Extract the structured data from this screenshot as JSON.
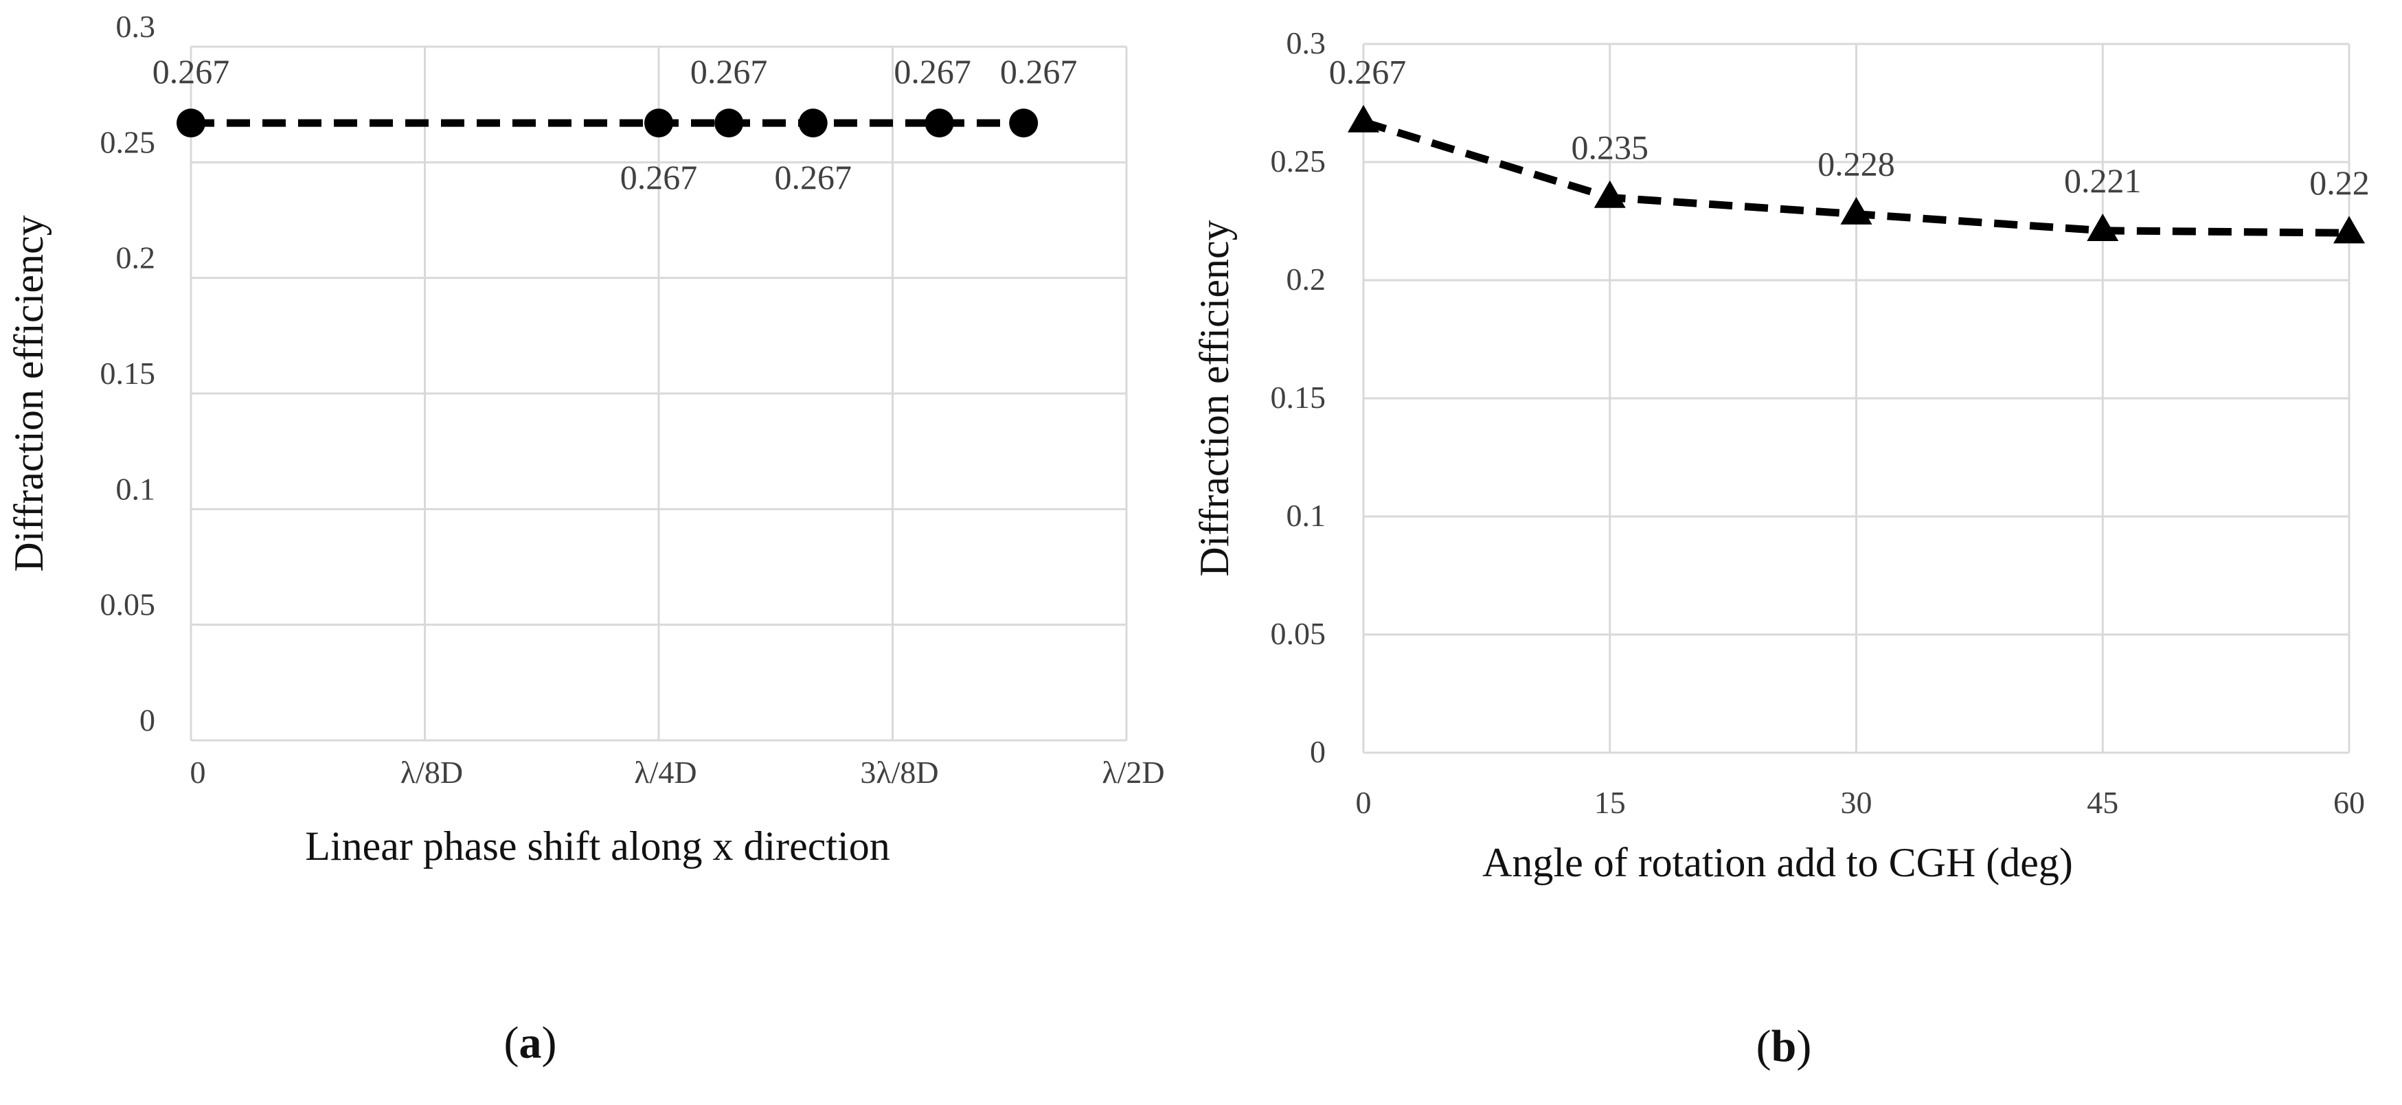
{
  "colors": {
    "series": "#000000",
    "grid": "#d9d9d9",
    "tick_text": "#404040",
    "background": "#ffffff"
  },
  "chart_data": [
    {
      "type": "line",
      "panel_label": "(a)",
      "panel_letter": "a",
      "xlabel": "Linear phase shift along x direction",
      "ylabel": "Diffraction efficiency",
      "categories": [
        "0",
        "λ/8D",
        "λ/4D",
        "3λ/8D",
        "λ/2D"
      ],
      "xlim": [
        0,
        4
      ],
      "ylim": [
        0,
        0.3
      ],
      "yticks": [
        "0",
        "0.05",
        "0.1",
        "0.15",
        "0.2",
        "0.25",
        "0.3"
      ],
      "ytick_values": [
        0,
        0.05,
        0.1,
        0.15,
        0.2,
        0.25,
        0.3
      ],
      "grid": true,
      "marker": "circle",
      "line_style": "dashed",
      "series": [
        {
          "name": "Diffraction efficiency",
          "x": [
            0,
            2,
            2.3,
            2.66,
            3.2,
            3.56
          ],
          "values": [
            0.267,
            0.267,
            0.267,
            0.267,
            0.267,
            0.267
          ],
          "labels": [
            "0.267",
            "0.267",
            "0.267",
            "0.267",
            "0.267",
            "0.267"
          ],
          "label_positions": [
            "above",
            "below",
            "above",
            "below",
            "above",
            "above"
          ]
        }
      ]
    },
    {
      "type": "line",
      "panel_label": "(b)",
      "panel_letter": "b",
      "xlabel": "Angle of rotation add to CGH (deg)",
      "ylabel": "Diffraction efficiency",
      "categories": [
        "0",
        "15",
        "30",
        "45",
        "60"
      ],
      "xlim": [
        0,
        60
      ],
      "ylim": [
        0,
        0.3
      ],
      "yticks": [
        "0",
        "0.05",
        "0.1",
        "0.15",
        "0.2",
        "0.25",
        "0.3"
      ],
      "ytick_values": [
        0,
        0.05,
        0.1,
        0.15,
        0.2,
        0.25,
        0.3
      ],
      "grid": true,
      "marker": "triangle",
      "line_style": "dashed",
      "series": [
        {
          "name": "Diffraction efficiency",
          "x": [
            0,
            15,
            30,
            45,
            60
          ],
          "values": [
            0.267,
            0.235,
            0.228,
            0.221,
            0.22
          ],
          "labels": [
            "0.267",
            "0.235",
            "0.228",
            "0.221",
            "0.22"
          ],
          "label_positions": [
            "above",
            "above",
            "above",
            "above",
            "above"
          ]
        }
      ]
    }
  ]
}
